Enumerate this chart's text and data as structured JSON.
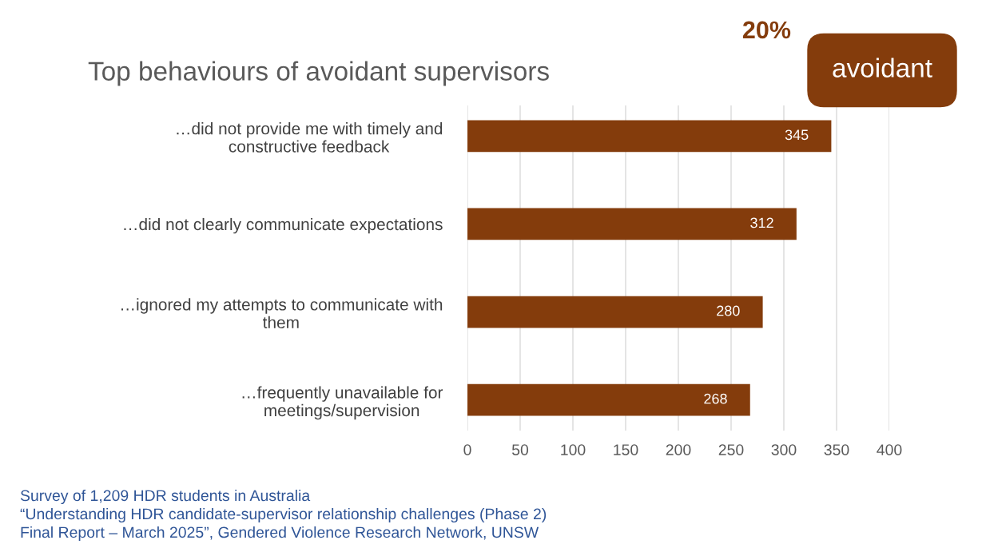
{
  "chart_data": {
    "type": "bar",
    "orientation": "horizontal",
    "title": "Top behaviours of avoidant supervisors",
    "categories": [
      "…did not provide me with timely and\nconstructive feedback",
      "…did not clearly communicate expectations",
      "…ignored my attempts to communicate with\nthem",
      "…frequently unavailable for\nmeetings/supervision"
    ],
    "values": [
      345,
      312,
      280,
      268
    ],
    "color": "#843c0c",
    "data_labels": true,
    "xlim": [
      0,
      400
    ],
    "xticks": [
      0,
      50,
      100,
      150,
      200,
      250,
      300,
      350,
      400
    ],
    "grid": "x",
    "annotations": [
      "20%",
      "avoidant",
      "Survey of 1,209 HDR students in Australia",
      "“Understanding HDR candidate-supervisor relationship challenges (Phase 2)",
      "Final Report – March 2025”, Gendered Violence Research Network, UNSW"
    ]
  }
}
